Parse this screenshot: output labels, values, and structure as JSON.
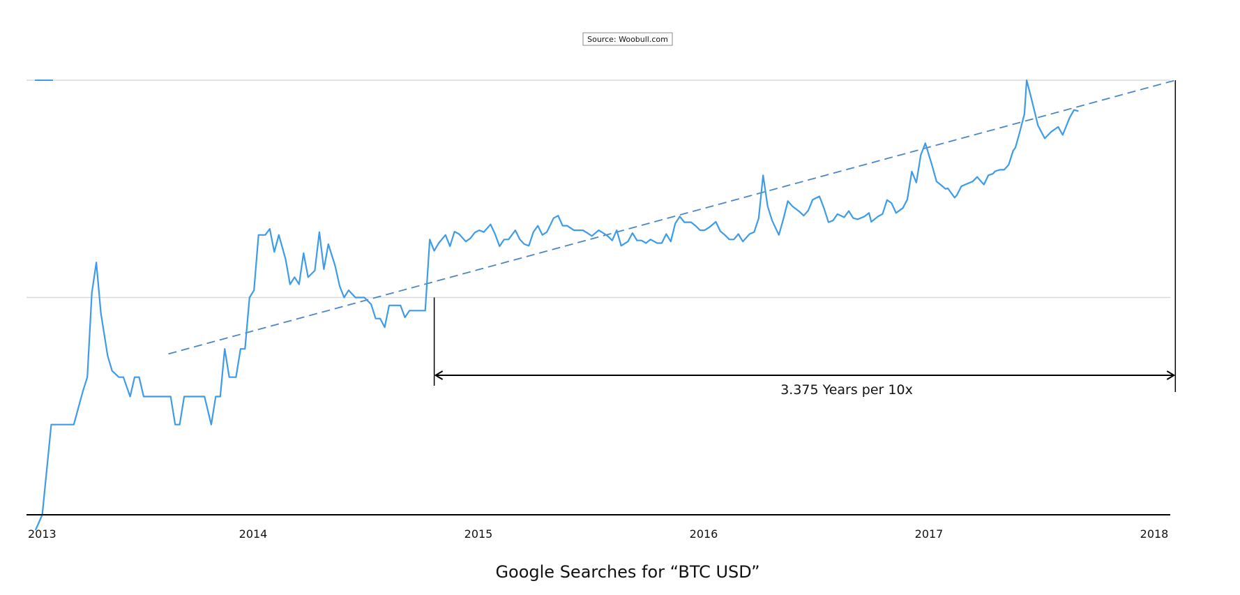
{
  "chart_data": {
    "type": "line",
    "title": "Google Searches for “BTC USD”",
    "source": "Source: Woobull.com",
    "annotation": "3.375 Years per 10x",
    "x_ticks": [
      "2013",
      "2014",
      "2015",
      "2016",
      "2017",
      "2018"
    ],
    "xlim": [
      2013.0,
      2018.1
    ],
    "yscale": "log",
    "ylim": [
      1,
      100
    ],
    "grid": true,
    "colors": {
      "series": "#3d9be9",
      "trend": "#4a86c5",
      "axis": "#000000",
      "grid": "#d9d9d9"
    },
    "series": [
      {
        "values": [
          [
            2013.04,
            0.85
          ],
          [
            2013.07,
            1.0
          ],
          [
            2013.11,
            2.6
          ],
          [
            2013.14,
            2.6
          ],
          [
            2013.18,
            2.6
          ],
          [
            2013.21,
            2.6
          ],
          [
            2013.25,
            3.7
          ],
          [
            2013.27,
            4.3
          ],
          [
            2013.29,
            10.5
          ],
          [
            2013.31,
            14.5
          ],
          [
            2013.33,
            8.5
          ],
          [
            2013.36,
            5.4
          ],
          [
            2013.38,
            4.6
          ],
          [
            2013.41,
            4.3
          ],
          [
            2013.43,
            4.3
          ],
          [
            2013.46,
            3.5
          ],
          [
            2013.48,
            4.3
          ],
          [
            2013.5,
            4.3
          ],
          [
            2013.52,
            3.5
          ],
          [
            2013.55,
            3.5
          ],
          [
            2013.57,
            3.5
          ],
          [
            2013.6,
            3.5
          ],
          [
            2013.62,
            3.5
          ],
          [
            2013.64,
            3.5
          ],
          [
            2013.66,
            2.6
          ],
          [
            2013.68,
            2.6
          ],
          [
            2013.7,
            3.5
          ],
          [
            2013.72,
            3.5
          ],
          [
            2013.75,
            3.5
          ],
          [
            2013.77,
            3.5
          ],
          [
            2013.79,
            3.5
          ],
          [
            2013.82,
            2.6
          ],
          [
            2013.84,
            3.5
          ],
          [
            2013.86,
            3.5
          ],
          [
            2013.88,
            5.8
          ],
          [
            2013.9,
            4.3
          ],
          [
            2013.93,
            4.3
          ],
          [
            2013.95,
            5.8
          ],
          [
            2013.97,
            5.8
          ],
          [
            2013.99,
            10.0
          ],
          [
            2014.01,
            10.8
          ],
          [
            2014.03,
            19.4
          ],
          [
            2014.06,
            19.4
          ],
          [
            2014.08,
            20.7
          ],
          [
            2014.1,
            16.2
          ],
          [
            2014.12,
            19.4
          ],
          [
            2014.15,
            15.0
          ],
          [
            2014.17,
            11.5
          ],
          [
            2014.19,
            12.4
          ],
          [
            2014.21,
            11.5
          ],
          [
            2014.23,
            16.0
          ],
          [
            2014.25,
            12.4
          ],
          [
            2014.28,
            13.3
          ],
          [
            2014.3,
            20.0
          ],
          [
            2014.32,
            13.5
          ],
          [
            2014.34,
            17.6
          ],
          [
            2014.37,
            14.0
          ],
          [
            2014.39,
            11.3
          ],
          [
            2014.41,
            10.0
          ],
          [
            2014.43,
            10.8
          ],
          [
            2014.46,
            10.0
          ],
          [
            2014.48,
            10.0
          ],
          [
            2014.5,
            10.0
          ],
          [
            2014.53,
            9.3
          ],
          [
            2014.55,
            8.0
          ],
          [
            2014.57,
            8.0
          ],
          [
            2014.59,
            7.3
          ],
          [
            2014.61,
            9.2
          ],
          [
            2014.64,
            9.2
          ],
          [
            2014.66,
            9.2
          ],
          [
            2014.68,
            8.1
          ],
          [
            2014.7,
            8.7
          ],
          [
            2014.73,
            8.7
          ],
          [
            2014.75,
            8.7
          ],
          [
            2014.77,
            8.7
          ],
          [
            2014.79,
            18.5
          ],
          [
            2014.81,
            16.4
          ],
          [
            2014.83,
            17.8
          ],
          [
            2014.86,
            19.4
          ],
          [
            2014.88,
            17.2
          ],
          [
            2014.9,
            20.1
          ],
          [
            2014.92,
            19.6
          ],
          [
            2014.95,
            18.1
          ],
          [
            2014.97,
            18.7
          ],
          [
            2014.99,
            19.9
          ],
          [
            2015.01,
            20.4
          ],
          [
            2015.03,
            20.0
          ],
          [
            2015.06,
            21.7
          ],
          [
            2015.08,
            19.6
          ],
          [
            2015.1,
            17.2
          ],
          [
            2015.12,
            18.5
          ],
          [
            2015.14,
            18.5
          ],
          [
            2015.17,
            20.4
          ],
          [
            2015.19,
            18.5
          ],
          [
            2015.21,
            17.6
          ],
          [
            2015.23,
            17.3
          ],
          [
            2015.25,
            20.0
          ],
          [
            2015.27,
            21.4
          ],
          [
            2015.29,
            19.4
          ],
          [
            2015.31,
            20.0
          ],
          [
            2015.34,
            23.2
          ],
          [
            2015.36,
            23.8
          ],
          [
            2015.38,
            21.4
          ],
          [
            2015.4,
            21.4
          ],
          [
            2015.43,
            20.4
          ],
          [
            2015.45,
            20.4
          ],
          [
            2015.47,
            20.4
          ],
          [
            2015.49,
            19.8
          ],
          [
            2015.51,
            19.2
          ],
          [
            2015.54,
            20.4
          ],
          [
            2015.56,
            19.8
          ],
          [
            2015.58,
            19.2
          ],
          [
            2015.6,
            18.3
          ],
          [
            2015.62,
            20.4
          ],
          [
            2015.64,
            17.3
          ],
          [
            2015.67,
            18.1
          ],
          [
            2015.69,
            19.8
          ],
          [
            2015.71,
            18.3
          ],
          [
            2015.73,
            18.3
          ],
          [
            2015.75,
            17.8
          ],
          [
            2015.77,
            18.5
          ],
          [
            2015.8,
            17.8
          ],
          [
            2015.82,
            17.8
          ],
          [
            2015.84,
            19.6
          ],
          [
            2015.86,
            18.1
          ],
          [
            2015.88,
            21.9
          ],
          [
            2015.9,
            23.6
          ],
          [
            2015.92,
            22.2
          ],
          [
            2015.95,
            22.2
          ],
          [
            2015.97,
            21.4
          ],
          [
            2015.99,
            20.4
          ],
          [
            2016.01,
            20.4
          ],
          [
            2016.03,
            21.0
          ],
          [
            2016.06,
            22.3
          ],
          [
            2016.08,
            20.2
          ],
          [
            2016.1,
            19.4
          ],
          [
            2016.12,
            18.5
          ],
          [
            2016.14,
            18.5
          ],
          [
            2016.16,
            19.6
          ],
          [
            2016.18,
            18.1
          ],
          [
            2016.21,
            19.6
          ],
          [
            2016.23,
            20.0
          ],
          [
            2016.25,
            23.1
          ],
          [
            2016.27,
            36.5
          ],
          [
            2016.29,
            26.3
          ],
          [
            2016.31,
            22.6
          ],
          [
            2016.34,
            19.4
          ],
          [
            2016.36,
            23.0
          ],
          [
            2016.38,
            27.8
          ],
          [
            2016.4,
            26.3
          ],
          [
            2016.43,
            24.9
          ],
          [
            2016.45,
            23.8
          ],
          [
            2016.47,
            25.1
          ],
          [
            2016.49,
            28.2
          ],
          [
            2016.52,
            29.2
          ],
          [
            2016.54,
            25.8
          ],
          [
            2016.56,
            22.2
          ],
          [
            2016.58,
            22.6
          ],
          [
            2016.6,
            24.2
          ],
          [
            2016.63,
            23.4
          ],
          [
            2016.65,
            25.0
          ],
          [
            2016.67,
            23.2
          ],
          [
            2016.69,
            22.9
          ],
          [
            2016.72,
            23.6
          ],
          [
            2016.74,
            24.5
          ],
          [
            2016.75,
            22.3
          ],
          [
            2016.78,
            23.6
          ],
          [
            2016.8,
            24.2
          ],
          [
            2016.82,
            28.1
          ],
          [
            2016.84,
            27.2
          ],
          [
            2016.86,
            24.5
          ],
          [
            2016.89,
            25.8
          ],
          [
            2016.91,
            28.2
          ],
          [
            2016.93,
            38.0
          ],
          [
            2016.95,
            33.8
          ],
          [
            2016.97,
            45.3
          ],
          [
            2016.99,
            51.3
          ],
          [
            2017.02,
            40.5
          ],
          [
            2017.04,
            34.2
          ],
          [
            2017.06,
            32.9
          ],
          [
            2017.08,
            31.6
          ],
          [
            2017.09,
            31.8
          ],
          [
            2017.12,
            28.8
          ],
          [
            2017.13,
            29.6
          ],
          [
            2017.15,
            32.5
          ],
          [
            2017.17,
            33.2
          ],
          [
            2017.2,
            34.2
          ],
          [
            2017.22,
            35.9
          ],
          [
            2017.23,
            34.9
          ],
          [
            2017.25,
            33.1
          ],
          [
            2017.27,
            36.5
          ],
          [
            2017.29,
            37.1
          ],
          [
            2017.3,
            38.1
          ],
          [
            2017.32,
            38.7
          ],
          [
            2017.34,
            38.7
          ],
          [
            2017.36,
            40.8
          ],
          [
            2017.38,
            47.4
          ],
          [
            2017.39,
            49.0
          ],
          [
            2017.41,
            58.1
          ],
          [
            2017.43,
            70.0
          ],
          [
            2017.44,
            100.0
          ],
          [
            2017.46,
            83.0
          ],
          [
            2017.49,
            62.0
          ],
          [
            2017.52,
            54.0
          ],
          [
            2017.55,
            58.0
          ],
          [
            2017.58,
            61.0
          ],
          [
            2017.6,
            56.0
          ],
          [
            2017.63,
            67.0
          ],
          [
            2017.65,
            73.0
          ],
          [
            2017.67,
            72.0
          ]
        ]
      }
    ],
    "trendline": {
      "style": "dashed",
      "from": [
        2013.63,
        5.5
      ],
      "to": [
        2018.1,
        100
      ]
    }
  }
}
